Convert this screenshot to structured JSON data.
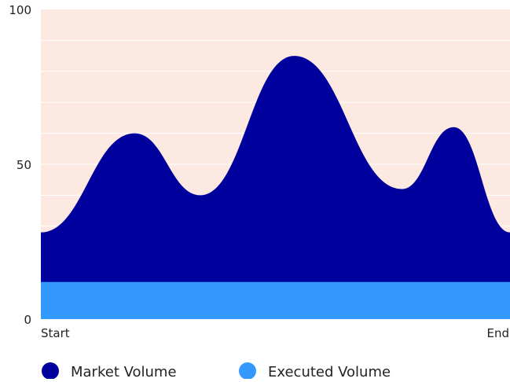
{
  "chart_data": {
    "type": "area",
    "x_start_label": "Start",
    "x_end_label": "End",
    "ylim": [
      0,
      100
    ],
    "y_ticks": [
      0,
      50,
      100
    ],
    "grid": true,
    "legend_position": "bottom-left",
    "series": [
      {
        "name": "Market Volume",
        "color": "#00009c",
        "x": [
          0,
          0.2,
          0.34,
          0.54,
          0.77,
          0.88,
          1.0
        ],
        "y": [
          28,
          60,
          40,
          85,
          42,
          62,
          28
        ]
      },
      {
        "name": "Executed Volume",
        "color": "#3399ff",
        "x": [
          0,
          1.0
        ],
        "y": [
          12,
          12
        ]
      }
    ],
    "plot_background": "#fce9e1",
    "gridline_color": "#ffffff"
  }
}
